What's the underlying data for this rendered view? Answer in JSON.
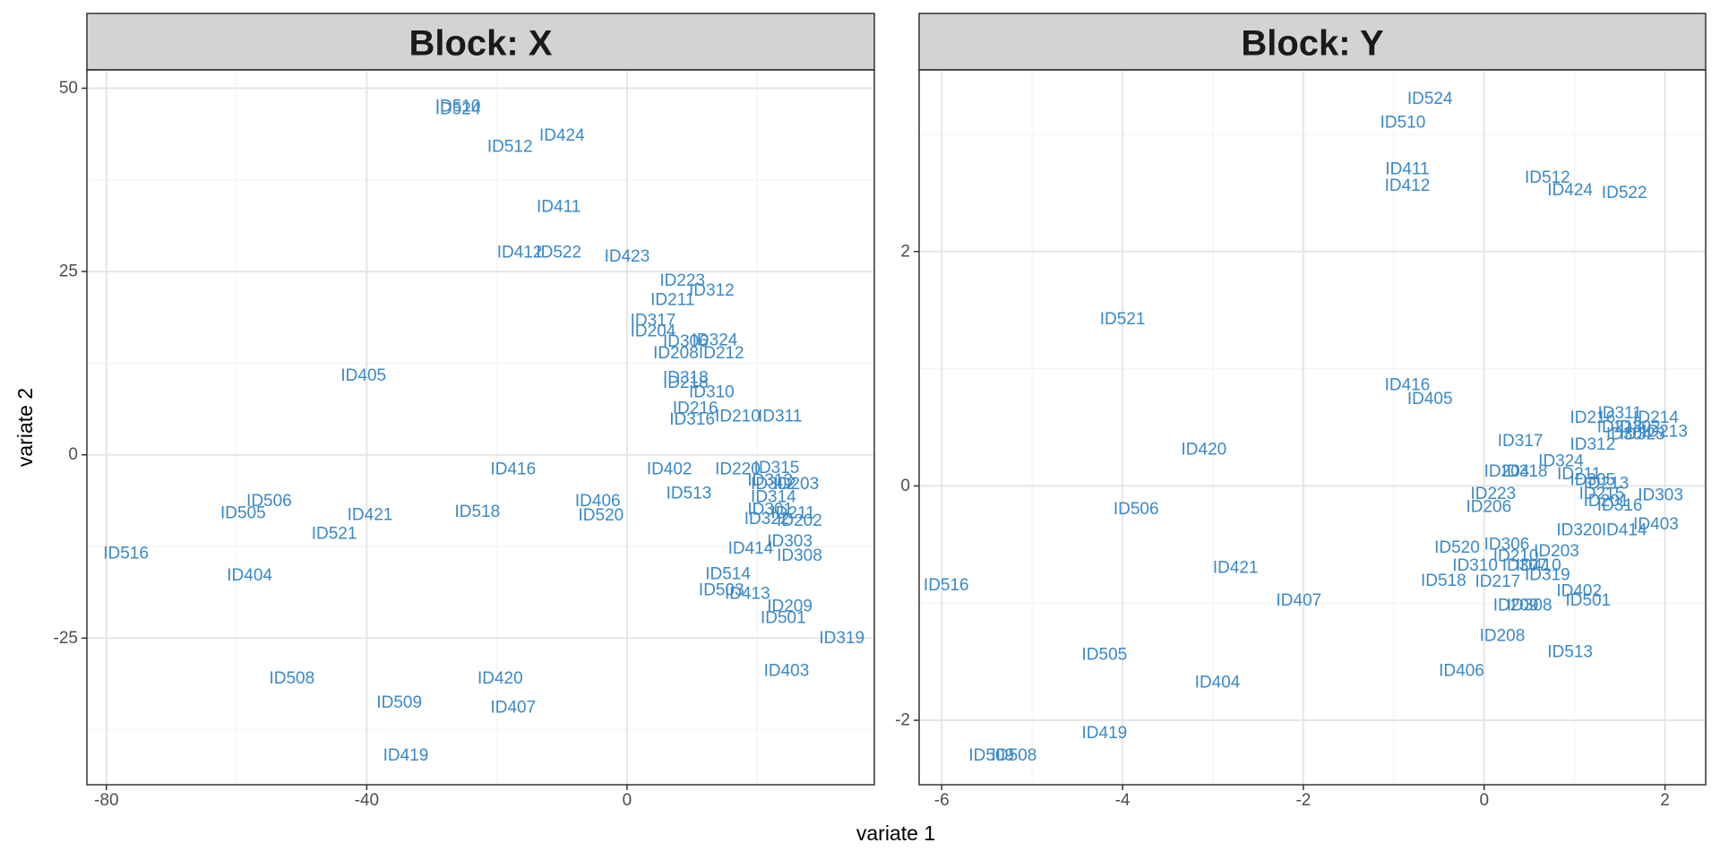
{
  "figure": {
    "xlabel": "variate 1",
    "ylabel": "variate 2"
  },
  "colors": {
    "point": "#3a88c8",
    "strip_bg": "#d3d3d3",
    "grid_major": "#e6e6e6",
    "grid_minor": "#f2f2f2",
    "border": "#333333"
  },
  "chart_data": [
    {
      "type": "scatter",
      "title": "Block: X",
      "xlim": [
        -83,
        38
      ],
      "ylim": [
        -45,
        52.5
      ],
      "xticks": [
        -80,
        -40,
        0
      ],
      "yticks": [
        -25,
        0,
        25,
        50
      ],
      "xtick_labels": [
        "-80",
        "-40",
        "0"
      ],
      "ytick_labels": [
        "-25",
        "0",
        "25",
        "50"
      ],
      "xgrid_minor": [
        -60,
        -20,
        20
      ],
      "ygrid_minor": [
        -37.5,
        -12.5,
        12.5,
        37.5
      ],
      "points": [
        {
          "label": "ID510",
          "x": -26,
          "y": 47.5
        },
        {
          "label": "ID524",
          "x": -26,
          "y": 47.1
        },
        {
          "label": "ID424",
          "x": -10,
          "y": 43.5
        },
        {
          "label": "ID512",
          "x": -18,
          "y": 42.0
        },
        {
          "label": "ID411",
          "x": -10.5,
          "y": 33.8
        },
        {
          "label": "ID412",
          "x": -16.5,
          "y": 27.6
        },
        {
          "label": "ID522",
          "x": -10.5,
          "y": 27.6
        },
        {
          "label": "ID423",
          "x": 0,
          "y": 27.0
        },
        {
          "label": "ID223",
          "x": 8.5,
          "y": 23.7
        },
        {
          "label": "ID312",
          "x": 13,
          "y": 22.4
        },
        {
          "label": "ID211",
          "x": 7,
          "y": 21.1
        },
        {
          "label": "ID317",
          "x": 4,
          "y": 18.3
        },
        {
          "label": "ID204",
          "x": 4,
          "y": 16.8
        },
        {
          "label": "ID306",
          "x": 9,
          "y": 15.4
        },
        {
          "label": "ID324",
          "x": 13.5,
          "y": 15.6
        },
        {
          "label": "ID208",
          "x": 7.5,
          "y": 13.8
        },
        {
          "label": "ID212",
          "x": 14.5,
          "y": 13.8
        },
        {
          "label": "ID318",
          "x": 9,
          "y": 10.5
        },
        {
          "label": "ID218",
          "x": 9,
          "y": 9.8
        },
        {
          "label": "ID310",
          "x": 13,
          "y": 8.5
        },
        {
          "label": "ID216",
          "x": 10.5,
          "y": 6.3
        },
        {
          "label": "ID210",
          "x": 17,
          "y": 5.2
        },
        {
          "label": "ID311",
          "x": 23.5,
          "y": 5.2
        },
        {
          "label": "ID316",
          "x": 10,
          "y": 4.8
        },
        {
          "label": "ID405",
          "x": -40.5,
          "y": 10.8
        },
        {
          "label": "ID416",
          "x": -17.5,
          "y": -2.0
        },
        {
          "label": "ID402",
          "x": 6.5,
          "y": -2.0
        },
        {
          "label": "ID220",
          "x": 17,
          "y": -2.0
        },
        {
          "label": "ID315",
          "x": 23,
          "y": -1.8
        },
        {
          "label": "ID313",
          "x": 22,
          "y": -3.5
        },
        {
          "label": "ID302",
          "x": 22.5,
          "y": -4.0
        },
        {
          "label": "ID203",
          "x": 26,
          "y": -4.0
        },
        {
          "label": "ID513",
          "x": 9.5,
          "y": -5.3
        },
        {
          "label": "ID314",
          "x": 22.5,
          "y": -5.8
        },
        {
          "label": "ID406",
          "x": -4.5,
          "y": -6.3
        },
        {
          "label": "ID301",
          "x": 22,
          "y": -7.5
        },
        {
          "label": "ID520",
          "x": -4,
          "y": -8.3
        },
        {
          "label": "ID211b",
          "x": 25.5,
          "y": -8.0
        },
        {
          "label": "ID322",
          "x": 21.5,
          "y": -8.8
        },
        {
          "label": "ID202",
          "x": 26.5,
          "y": -9.0
        },
        {
          "label": "ID506",
          "x": -55,
          "y": -6.3
        },
        {
          "label": "ID505",
          "x": -59,
          "y": -8.0
        },
        {
          "label": "ID421",
          "x": -39.5,
          "y": -8.2
        },
        {
          "label": "ID518",
          "x": -23,
          "y": -7.8
        },
        {
          "label": "ID521",
          "x": -45,
          "y": -10.8
        },
        {
          "label": "ID516",
          "x": -77,
          "y": -13.5
        },
        {
          "label": "ID404",
          "x": -58,
          "y": -16.5
        },
        {
          "label": "ID414",
          "x": 19,
          "y": -12.8
        },
        {
          "label": "ID303",
          "x": 25,
          "y": -11.8
        },
        {
          "label": "ID308",
          "x": 26.5,
          "y": -13.8
        },
        {
          "label": "ID514",
          "x": 15.5,
          "y": -16.3
        },
        {
          "label": "ID503",
          "x": 14.5,
          "y": -18.5
        },
        {
          "label": "ID413",
          "x": 18.5,
          "y": -19.0
        },
        {
          "label": "ID209",
          "x": 25,
          "y": -20.7
        },
        {
          "label": "ID501",
          "x": 24,
          "y": -22.3
        },
        {
          "label": "ID319",
          "x": 33,
          "y": -25.0
        },
        {
          "label": "ID403",
          "x": 24.5,
          "y": -29.5
        },
        {
          "label": "ID508",
          "x": -51.5,
          "y": -30.5
        },
        {
          "label": "ID420",
          "x": -19.5,
          "y": -30.5
        },
        {
          "label": "ID509",
          "x": -35,
          "y": -33.8
        },
        {
          "label": "ID407",
          "x": -17.5,
          "y": -34.5
        },
        {
          "label": "ID419",
          "x": -34,
          "y": -41.0
        }
      ]
    },
    {
      "type": "scatter",
      "title": "Block: Y",
      "xlim": [
        -6.25,
        2.45
      ],
      "ylim": [
        -2.55,
        3.55
      ],
      "xticks": [
        -6,
        -4,
        -2,
        0,
        2
      ],
      "yticks": [
        -2,
        0,
        2
      ],
      "xtick_labels": [
        "-6",
        "-4",
        "-2",
        "0",
        "2"
      ],
      "ytick_labels": [
        "-2",
        "0",
        "2"
      ],
      "xgrid_minor": [
        -5,
        -3,
        -1,
        1
      ],
      "ygrid_minor": [
        -1,
        1,
        3
      ],
      "points": [
        {
          "label": "ID524",
          "x": -0.6,
          "y": 3.3
        },
        {
          "label": "ID510",
          "x": -0.9,
          "y": 3.1
        },
        {
          "label": "ID411",
          "x": -0.85,
          "y": 2.7
        },
        {
          "label": "ID412",
          "x": -0.85,
          "y": 2.56
        },
        {
          "label": "ID512",
          "x": 0.7,
          "y": 2.63
        },
        {
          "label": "ID424",
          "x": 0.95,
          "y": 2.52
        },
        {
          "label": "ID522",
          "x": 1.55,
          "y": 2.5
        },
        {
          "label": "ID521",
          "x": -4,
          "y": 1.42
        },
        {
          "label": "ID416",
          "x": -0.85,
          "y": 0.86
        },
        {
          "label": "ID405",
          "x": -0.6,
          "y": 0.74
        },
        {
          "label": "ID311",
          "x": 1.5,
          "y": 0.62
        },
        {
          "label": "ID216",
          "x": 1.2,
          "y": 0.58
        },
        {
          "label": "ID214",
          "x": 1.9,
          "y": 0.58
        },
        {
          "label": "ID218",
          "x": 1.5,
          "y": 0.5
        },
        {
          "label": "ID302",
          "x": 1.7,
          "y": 0.5
        },
        {
          "label": "ID213",
          "x": 2.0,
          "y": 0.46
        },
        {
          "label": "ID304",
          "x": 1.6,
          "y": 0.44
        },
        {
          "label": "ID323",
          "x": 1.75,
          "y": 0.44
        },
        {
          "label": "ID317",
          "x": 0.4,
          "y": 0.38
        },
        {
          "label": "ID312",
          "x": 1.2,
          "y": 0.35
        },
        {
          "label": "ID420",
          "x": -3.1,
          "y": 0.31
        },
        {
          "label": "ID324",
          "x": 0.85,
          "y": 0.21
        },
        {
          "label": "ID204",
          "x": 0.25,
          "y": 0.12
        },
        {
          "label": "ID318",
          "x": 0.45,
          "y": 0.12
        },
        {
          "label": "ID211",
          "x": 1.05,
          "y": 0.1
        },
        {
          "label": "ID305",
          "x": 1.2,
          "y": 0.05
        },
        {
          "label": "ID213b",
          "x": 1.35,
          "y": 0.02
        },
        {
          "label": "ID223",
          "x": 0.1,
          "y": -0.07
        },
        {
          "label": "ID215",
          "x": 1.3,
          "y": -0.07
        },
        {
          "label": "ID303",
          "x": 1.95,
          "y": -0.08
        },
        {
          "label": "ID201",
          "x": 1.35,
          "y": -0.13
        },
        {
          "label": "ID316",
          "x": 1.5,
          "y": -0.17
        },
        {
          "label": "ID206",
          "x": 0.05,
          "y": -0.18
        },
        {
          "label": "ID506",
          "x": -3.85,
          "y": -0.2
        },
        {
          "label": "ID403",
          "x": 1.9,
          "y": -0.33
        },
        {
          "label": "ID320",
          "x": 1.05,
          "y": -0.38
        },
        {
          "label": "ID414",
          "x": 1.55,
          "y": -0.38
        },
        {
          "label": "ID306",
          "x": 0.25,
          "y": -0.5
        },
        {
          "label": "ID520",
          "x": -0.3,
          "y": -0.53
        },
        {
          "label": "ID203",
          "x": 0.8,
          "y": -0.56
        },
        {
          "label": "ID210",
          "x": 0.35,
          "y": -0.6
        },
        {
          "label": "ID310",
          "x": -0.1,
          "y": -0.68
        },
        {
          "label": "ID307",
          "x": 0.45,
          "y": -0.68
        },
        {
          "label": "ID410",
          "x": 0.6,
          "y": -0.68
        },
        {
          "label": "ID421",
          "x": -2.75,
          "y": -0.7
        },
        {
          "label": "ID319",
          "x": 0.7,
          "y": -0.76
        },
        {
          "label": "ID217",
          "x": 0.15,
          "y": -0.82
        },
        {
          "label": "ID518",
          "x": -0.45,
          "y": -0.81
        },
        {
          "label": "ID516",
          "x": -5.95,
          "y": -0.85
        },
        {
          "label": "ID402",
          "x": 1.05,
          "y": -0.9
        },
        {
          "label": "ID407",
          "x": -2.05,
          "y": -0.98
        },
        {
          "label": "ID501",
          "x": 1.15,
          "y": -0.98
        },
        {
          "label": "ID209",
          "x": 0.35,
          "y": -1.02
        },
        {
          "label": "ID308",
          "x": 0.5,
          "y": -1.02
        },
        {
          "label": "ID208",
          "x": 0.2,
          "y": -1.28
        },
        {
          "label": "ID513",
          "x": 0.95,
          "y": -1.42
        },
        {
          "label": "ID505",
          "x": -4.2,
          "y": -1.44
        },
        {
          "label": "ID406",
          "x": -0.25,
          "y": -1.58
        },
        {
          "label": "ID404",
          "x": -2.95,
          "y": -1.68
        },
        {
          "label": "ID419",
          "x": -4.2,
          "y": -2.11
        },
        {
          "label": "ID509",
          "x": -5.45,
          "y": -2.3
        },
        {
          "label": "ID508",
          "x": -5.2,
          "y": -2.3
        }
      ]
    }
  ]
}
